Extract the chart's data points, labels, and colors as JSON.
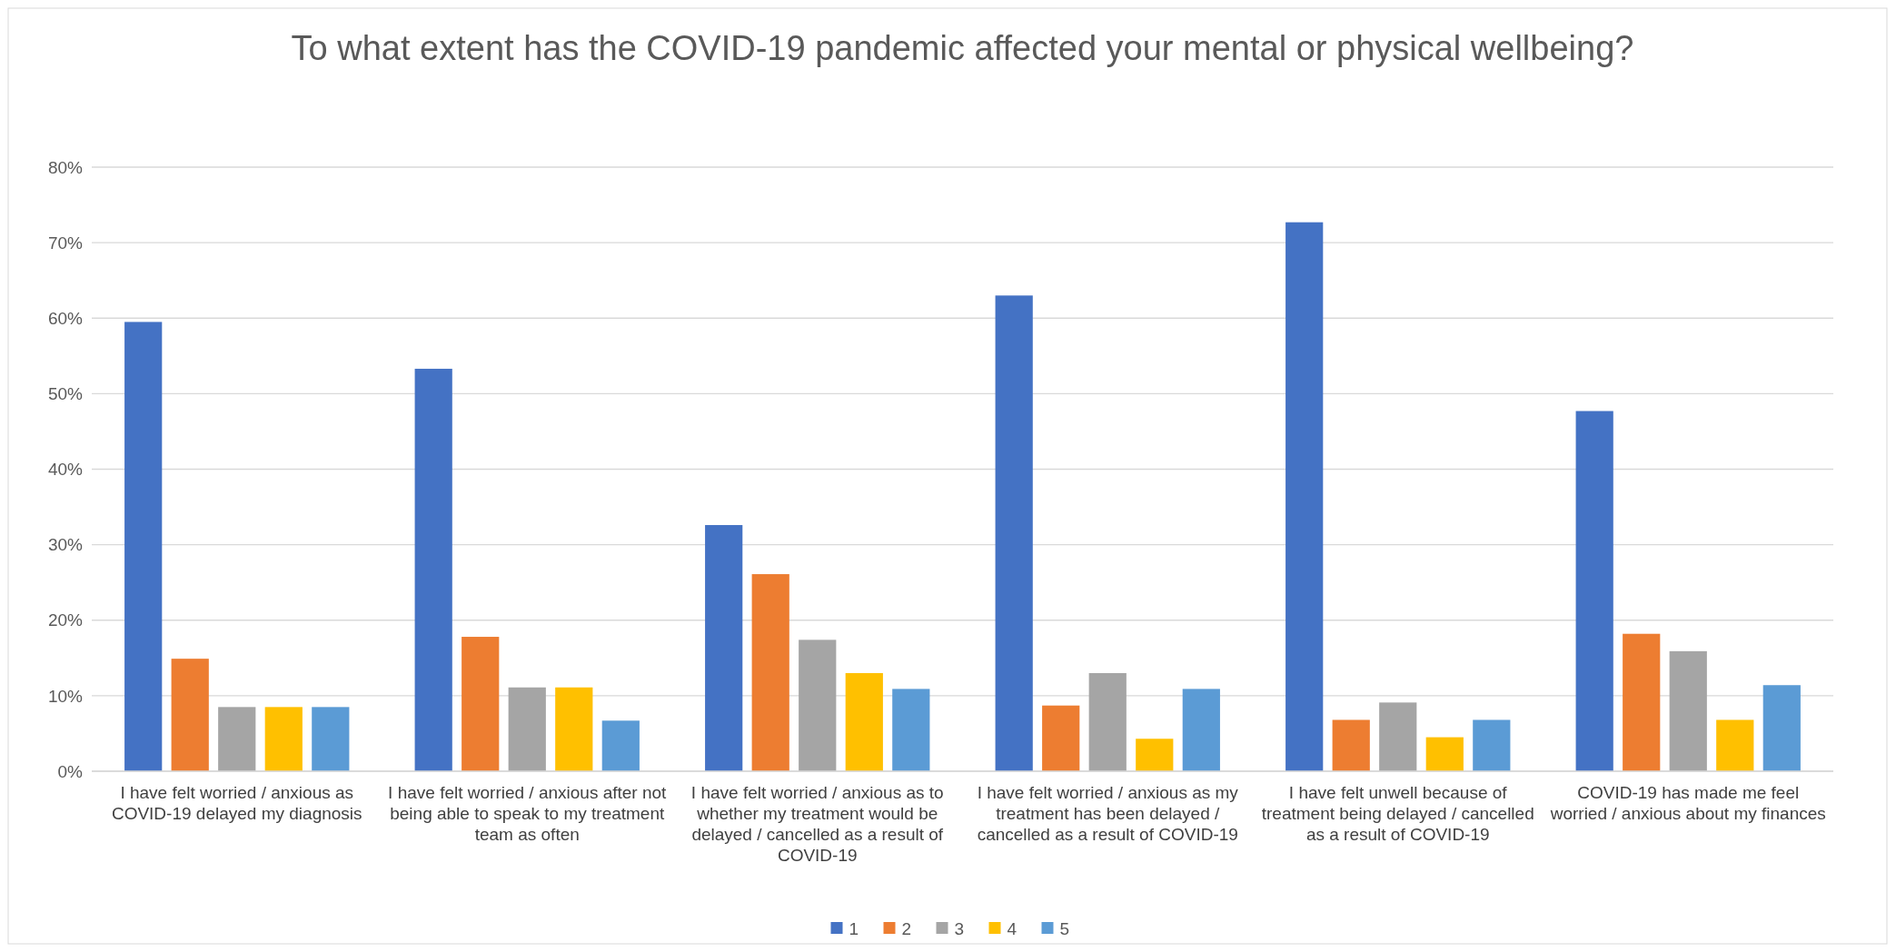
{
  "chart_data": {
    "type": "bar",
    "title": "To what extent has the COVID-19 pandemic affected your mental or physical wellbeing?",
    "categories": [
      "I have felt worried / anxious as COVID-19 delayed my diagnosis",
      "I have felt worried / anxious after not being able to speak to my treatment team as often",
      "I have felt worried / anxious as to whether my treatment would be delayed / cancelled as a result of COVID-19",
      "I have felt worried / anxious as my treatment has been delayed / cancelled as a result of COVID-19",
      "I have felt unwell because of treatment being delayed / cancelled as a result of COVID-19",
      "COVID-19 has made me feel worried / anxious about my finances"
    ],
    "series": [
      {
        "name": "1",
        "color": "#4472c4",
        "values": [
          59.5,
          53.3,
          32.6,
          63.0,
          72.7,
          47.7
        ]
      },
      {
        "name": "2",
        "color": "#ed7d31",
        "values": [
          14.9,
          17.8,
          26.1,
          8.7,
          6.8,
          18.2
        ]
      },
      {
        "name": "3",
        "color": "#a5a5a5",
        "values": [
          8.5,
          11.1,
          17.4,
          13.0,
          9.1,
          15.9
        ]
      },
      {
        "name": "4",
        "color": "#ffc000",
        "values": [
          8.5,
          11.1,
          13.0,
          4.3,
          4.5,
          6.8
        ]
      },
      {
        "name": "5",
        "color": "#5b9bd5",
        "values": [
          8.5,
          6.7,
          10.9,
          10.9,
          6.8,
          11.4
        ]
      }
    ],
    "ylim": [
      0,
      80
    ],
    "yticks": [
      {
        "value": 0,
        "label": "0%"
      },
      {
        "value": 10,
        "label": "10%"
      },
      {
        "value": 20,
        "label": "20%"
      },
      {
        "value": 30,
        "label": "30%"
      },
      {
        "value": 40,
        "label": "40%"
      },
      {
        "value": 50,
        "label": "50%"
      },
      {
        "value": 60,
        "label": "60%"
      },
      {
        "value": 70,
        "label": "70%"
      },
      {
        "value": 80,
        "label": "80%"
      }
    ],
    "grid": "y",
    "legend": "bottom"
  }
}
